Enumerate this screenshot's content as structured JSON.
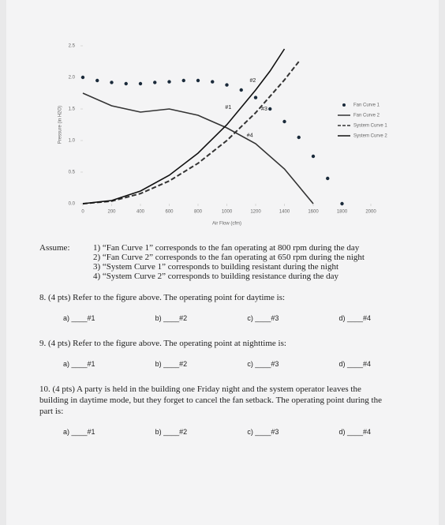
{
  "chart_data": {
    "type": "line",
    "x_label": "Air Flow (cfm)",
    "y_label": "Pressure (in H2O)",
    "xlim": [
      0,
      2000
    ],
    "xticks": [
      0,
      200,
      400,
      600,
      800,
      1000,
      1200,
      1400,
      1600,
      1800,
      2000
    ],
    "ylim": [
      0,
      2.5
    ],
    "yticks": [
      {
        "value": 0,
        "label": "0.0"
      },
      0.5,
      {
        "value": 1,
        "label": "1.0"
      },
      1.5,
      {
        "value": 2,
        "label": "2.0"
      },
      2.5
    ],
    "legend": "upper right",
    "series": [
      {
        "name": "Fan Curve 1",
        "color": "#1a2a3a",
        "style": "dots",
        "x": [
          0,
          100,
          200,
          300,
          400,
          500,
          600,
          700,
          800,
          900,
          1000,
          1100,
          1200,
          1300,
          1400,
          1500,
          1600,
          1700,
          1800
        ],
        "values": [
          2.0,
          1.95,
          1.92,
          1.9,
          1.9,
          1.92,
          1.93,
          1.95,
          1.95,
          1.93,
          1.88,
          1.8,
          1.68,
          1.5,
          1.3,
          1.05,
          0.75,
          0.4,
          0.0
        ]
      },
      {
        "name": "Fan Curve 2",
        "color": "#333333",
        "style": "solid",
        "x": [
          0,
          200,
          400,
          600,
          800,
          1000,
          1200,
          1400,
          1600
        ],
        "values": [
          1.75,
          1.55,
          1.45,
          1.5,
          1.4,
          1.2,
          0.95,
          0.55,
          0.0
        ]
      },
      {
        "name": "System Curve 1",
        "color": "#333333",
        "style": "dashed",
        "x": [
          0,
          200,
          400,
          600,
          800,
          1000,
          1200,
          1400,
          1500
        ],
        "values": [
          0,
          0.04,
          0.16,
          0.36,
          0.64,
          1.0,
          1.44,
          1.96,
          2.25
        ]
      },
      {
        "name": "System Curve 2",
        "color": "#111111",
        "style": "solid",
        "x": [
          0,
          200,
          400,
          600,
          800,
          1000,
          1200,
          1300,
          1400
        ],
        "values": [
          0,
          0.05,
          0.2,
          0.45,
          0.8,
          1.25,
          1.8,
          2.1,
          2.45
        ]
      }
    ],
    "annotations": [
      "#1",
      "#2",
      "#3",
      "#4"
    ]
  },
  "document": {
    "assume_label": "Assume:",
    "assumptions": [
      "1) “Fan Curve 1” corresponds to the fan operating at 800 rpm during the day",
      "2) “Fan Curve 2” corresponds to the fan operating at 650 rpm during the night",
      "3) “System Curve 1” corresponds to building resistant during the night",
      "4) “System Curve 2” corresponds to building resistance during the day"
    ],
    "questions": [
      {
        "text": "8. (4 pts) Refer to the figure above. The operating point for daytime is:",
        "options": [
          "a) ____#1",
          "b) ____#2",
          "c) ____#3",
          "d) ____#4"
        ]
      },
      {
        "text": "9. (4 pts) Refer to the figure above. The operating point at nighttime is:",
        "options": [
          "a) ____#1",
          "b) ____#2",
          "c) ____#3",
          "d) ____#4"
        ]
      },
      {
        "text": "10. (4 pts) A party is held in the building one Friday night and the system operator leaves the building in daytime mode, but they forget to cancel the fan setback. The operating point during the part is:",
        "options": [
          "a) ____#1",
          "b) ____#2",
          "c) ____#3",
          "d) ____#4"
        ]
      }
    ]
  }
}
